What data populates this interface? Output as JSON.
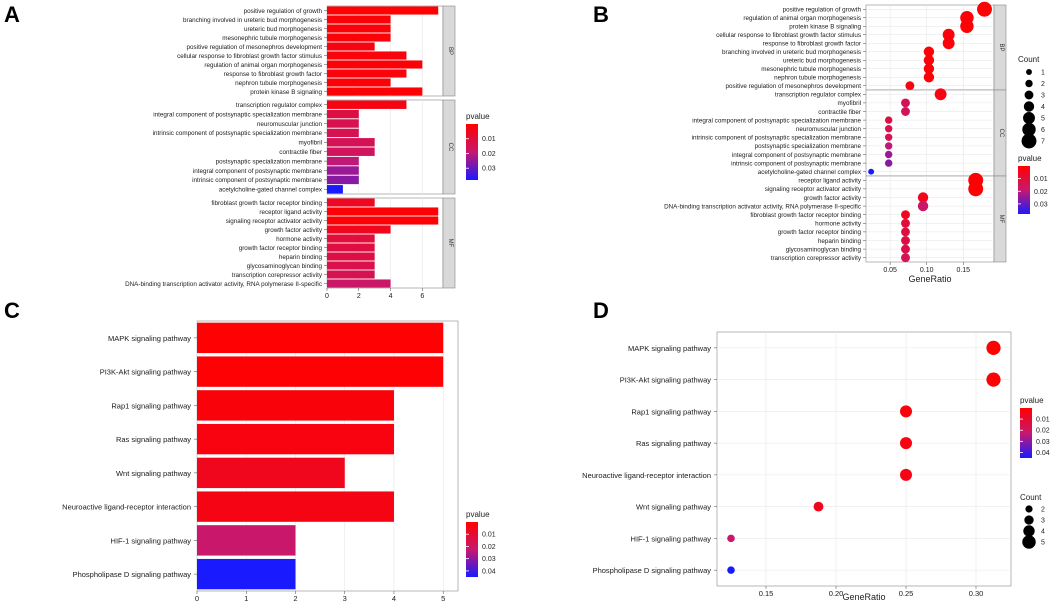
{
  "figure": {
    "panel_letters": [
      "A",
      "B",
      "C",
      "D"
    ]
  },
  "colors": {
    "low_p": "#ff0000",
    "mid_p": "#c8186e",
    "high_p": "#1a1aff",
    "panel_bg": "#ffffff",
    "strip_bg": "#d9d9d9",
    "grid": "#e6e6e6"
  },
  "chart_data": [
    {
      "id": "A",
      "type": "bar",
      "orientation": "horizontal",
      "xlabel": "",
      "xlim": [
        0,
        7.3
      ],
      "xticks": [
        0,
        2,
        4,
        6
      ],
      "legend": {
        "title": "pvalue",
        "ticks": [
          "0.01",
          "0.02",
          "0.03"
        ],
        "range": [
          0.0,
          0.038
        ]
      },
      "facets": [
        {
          "strip": "BP",
          "categories": [
            "positive regulation of growth",
            "branching involved in ureteric bud morphogenesis",
            "ureteric bud morphogenesis",
            "mesonephric tubule morphogenesis",
            "positive regulation of mesonephros development",
            "cellular response to fibroblast growth factor stimulus",
            "regulation of animal organ morphogenesis",
            "response to fibroblast growth factor",
            "nephron tubule morphogenesis",
            "protein kinase B signaling"
          ],
          "values": [
            7,
            4,
            4,
            4,
            3,
            5,
            6,
            5,
            4,
            6
          ],
          "pvalues": [
            0.0005,
            0.0015,
            0.0015,
            0.0015,
            0.003,
            0.002,
            0.001,
            0.002,
            0.0015,
            0.001
          ]
        },
        {
          "strip": "CC",
          "categories": [
            "transcription regulator complex",
            "integral component of postsynaptic specialization membrane",
            "neuromuscular junction",
            "intrinsic component of postsynaptic specialization membrane",
            "myofibril",
            "contractile fiber",
            "postsynaptic specialization membrane",
            "integral component of postsynaptic membrane",
            "intrinsic component of postsynaptic membrane",
            "acetylcholine-gated channel complex"
          ],
          "values": [
            5,
            2,
            2,
            2,
            3,
            3,
            2,
            2,
            2,
            1
          ],
          "pvalues": [
            0.003,
            0.012,
            0.014,
            0.014,
            0.015,
            0.016,
            0.02,
            0.024,
            0.026,
            0.038
          ]
        },
        {
          "strip": "MF",
          "categories": [
            "fibroblast growth factor receptor binding",
            "receptor ligand activity",
            "signaling receptor activator activity",
            "growth factor activity",
            "hormone activity",
            "growth factor receptor binding",
            "heparin binding",
            "glycosaminoglycan binding",
            "transcription corepressor activity",
            "DNA-binding transcription activator activity, RNA polymerase II-specific"
          ],
          "values": [
            3,
            7,
            7,
            4,
            3,
            3,
            3,
            3,
            3,
            4
          ],
          "pvalues": [
            0.006,
            0.0008,
            0.0008,
            0.005,
            0.01,
            0.011,
            0.012,
            0.013,
            0.014,
            0.018
          ]
        }
      ]
    },
    {
      "id": "B",
      "type": "scatter",
      "xlabel": "GeneRatio",
      "xlim": [
        0.017,
        0.192
      ],
      "xticks": [
        0.05,
        0.1,
        0.15
      ],
      "xtick_labels": [
        "0.05",
        "0.10",
        "0.15"
      ],
      "legend": {
        "count_title": "Count",
        "count_ticks": [
          1,
          2,
          3,
          4,
          5,
          6,
          7
        ],
        "pvalue_title": "pvalue",
        "pvalue_ticks": [
          "0.01",
          "0.02",
          "0.03"
        ],
        "range": [
          0.0,
          0.038
        ]
      },
      "facets": [
        {
          "strip": "BP",
          "categories": [
            "positive regulation of growth",
            "regulation of animal organ morphogenesis",
            "protein kinase B signaling",
            "cellular response to fibroblast growth factor stimulus",
            "response to fibroblast growth factor",
            "branching involved in ureteric bud morphogenesis",
            "ureteric bud morphogenesis",
            "mesonephric tubule morphogenesis",
            "nephron tubule morphogenesis",
            "positive regulation of mesonephros development"
          ],
          "x": [
            0.179,
            0.155,
            0.155,
            0.13,
            0.13,
            0.103,
            0.103,
            0.103,
            0.103,
            0.077
          ],
          "count": [
            7,
            6,
            6,
            5,
            5,
            4,
            4,
            4,
            4,
            3
          ],
          "pvalues": [
            0.0005,
            0.001,
            0.001,
            0.002,
            0.002,
            0.0015,
            0.0015,
            0.0015,
            0.0015,
            0.003
          ]
        },
        {
          "strip": "CC",
          "categories": [
            "transcription regulator complex",
            "myofibril",
            "contractile fiber",
            "integral component of postsynaptic specialization membrane",
            "neuromuscular junction",
            "intrinsic component of postsynaptic specialization membrane",
            "postsynaptic specialization membrane",
            "integral component of postsynaptic membrane",
            "intrinsic component of postsynaptic membrane",
            "acetylcholine-gated channel complex"
          ],
          "x": [
            0.119,
            0.071,
            0.071,
            0.048,
            0.048,
            0.048,
            0.048,
            0.048,
            0.048,
            0.024
          ],
          "count": [
            5,
            3,
            3,
            2,
            2,
            2,
            2,
            2,
            2,
            1
          ],
          "pvalues": [
            0.003,
            0.015,
            0.016,
            0.012,
            0.014,
            0.014,
            0.02,
            0.024,
            0.026,
            0.038
          ]
        },
        {
          "strip": "MF",
          "categories": [
            "receptor ligand activity",
            "signaling receptor activator activity",
            "growth factor activity",
            "DNA-binding transcription activator activity, RNA polymerase II-specific",
            "fibroblast growth factor receptor binding",
            "hormone activity",
            "growth factor receptor binding",
            "heparin binding",
            "glycosaminoglycan binding",
            "transcription corepressor activity"
          ],
          "x": [
            0.167,
            0.167,
            0.095,
            0.095,
            0.071,
            0.071,
            0.071,
            0.071,
            0.071,
            0.071
          ],
          "count": [
            7,
            7,
            4,
            4,
            3,
            3,
            3,
            3,
            3,
            3
          ],
          "pvalues": [
            0.0008,
            0.0008,
            0.005,
            0.018,
            0.006,
            0.01,
            0.011,
            0.012,
            0.013,
            0.014
          ]
        }
      ]
    },
    {
      "id": "C",
      "type": "bar",
      "orientation": "horizontal",
      "xlabel": "",
      "xlim": [
        0,
        5.3
      ],
      "xticks": [
        0,
        1,
        2,
        3,
        4,
        5
      ],
      "legend": {
        "title": "pvalue",
        "ticks": [
          "0.01",
          "0.02",
          "0.03",
          "0.04"
        ],
        "range": [
          0.0,
          0.045
        ]
      },
      "categories": [
        "MAPK signaling pathway",
        "PI3K-Akt signaling pathway",
        "Rap1 signaling pathway",
        "Ras signaling pathway",
        "Wnt signaling pathway",
        "Neuroactive ligand-receptor interaction",
        "HIF-1 signaling pathway",
        "Phospholipase D signaling pathway"
      ],
      "values": [
        5,
        5,
        4,
        4,
        3,
        4,
        2,
        2
      ],
      "pvalues": [
        0.0005,
        0.001,
        0.002,
        0.003,
        0.006,
        0.004,
        0.022,
        0.045
      ]
    },
    {
      "id": "D",
      "type": "scatter",
      "xlabel": "GeneRatio",
      "xlim": [
        0.115,
        0.325
      ],
      "xticks": [
        0.15,
        0.2,
        0.25,
        0.3
      ],
      "xtick_labels": [
        "0.15",
        "0.20",
        "0.25",
        "0.30"
      ],
      "legend": {
        "pvalue_title": "pvalue",
        "pvalue_ticks": [
          "0.01",
          "0.02",
          "0.03",
          "0.04"
        ],
        "range": [
          0.0,
          0.045
        ],
        "count_title": "Count",
        "count_ticks": [
          2,
          3,
          4,
          5
        ]
      },
      "categories": [
        "MAPK signaling pathway",
        "PI3K-Akt signaling pathway",
        "Rap1 signaling pathway",
        "Ras signaling pathway",
        "Neuroactive ligand-receptor interaction",
        "Wnt signaling pathway",
        "HIF-1 signaling pathway",
        "Phospholipase D signaling pathway"
      ],
      "x": [
        0.3125,
        0.3125,
        0.25,
        0.25,
        0.25,
        0.1875,
        0.125,
        0.125
      ],
      "count": [
        5,
        5,
        4,
        4,
        4,
        3,
        2,
        2
      ],
      "pvalues": [
        0.0005,
        0.001,
        0.002,
        0.003,
        0.004,
        0.006,
        0.022,
        0.045
      ]
    }
  ]
}
